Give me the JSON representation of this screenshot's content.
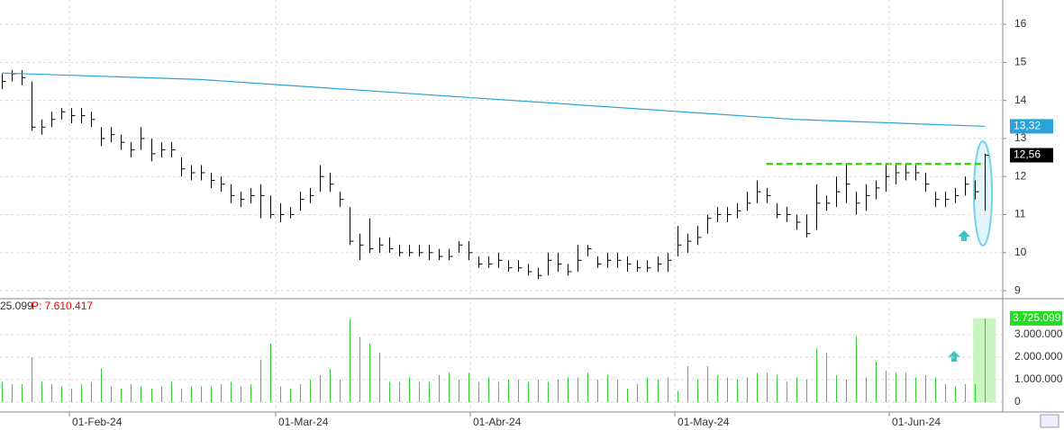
{
  "chart_data": [
    {
      "type": "ohlc",
      "color": "#000000",
      "xlim": [
        -0.2,
        100.8
      ],
      "ylim": [
        8.79,
        16.64
      ],
      "yticks": [
        9,
        10,
        11,
        12,
        13,
        14,
        15,
        16
      ],
      "grid": true,
      "high": [
        14.7,
        14.8,
        14.8,
        14.5,
        13.5,
        13.7,
        13.8,
        13.8,
        13.8,
        13.7,
        13.3,
        13.3,
        13.1,
        12.9,
        13.3,
        13.0,
        12.9,
        12.9,
        12.5,
        12.3,
        12.3,
        12.1,
        12.0,
        11.8,
        11.6,
        11.7,
        11.8,
        11.5,
        11.3,
        11.2,
        11.6,
        11.7,
        12.3,
        12.1,
        11.6,
        11.2,
        10.5,
        10.9,
        10.4,
        10.4,
        10.2,
        10.2,
        10.2,
        10.2,
        10.1,
        10.1,
        10.3,
        10.3,
        9.9,
        9.9,
        10.0,
        9.8,
        9.8,
        9.7,
        9.6,
        10.0,
        10.0,
        9.7,
        10.2,
        10.2,
        9.9,
        10.0,
        10.0,
        9.9,
        9.8,
        9.8,
        9.9,
        10.0,
        10.7,
        10.5,
        10.7,
        11.0,
        11.2,
        11.2,
        11.3,
        11.6,
        11.9,
        11.7,
        11.3,
        11.2,
        11.0,
        11.0,
        11.8,
        11.5,
        12.0,
        12.3,
        11.6,
        11.8,
        11.9,
        12.3,
        12.3,
        12.3,
        12.3,
        12.1,
        11.6,
        11.6,
        11.7,
        12.0,
        11.9,
        12.6
      ],
      "low": [
        14.3,
        14.5,
        14.4,
        13.2,
        13.1,
        13.3,
        13.5,
        13.4,
        13.4,
        13.3,
        12.8,
        12.9,
        12.7,
        12.5,
        12.7,
        12.4,
        12.5,
        12.5,
        12.0,
        11.9,
        11.9,
        11.7,
        11.6,
        11.3,
        11.2,
        11.3,
        10.9,
        10.9,
        10.8,
        10.9,
        11.1,
        11.3,
        11.6,
        11.6,
        11.2,
        10.2,
        9.8,
        10.0,
        10.0,
        10.0,
        9.9,
        9.9,
        9.9,
        9.8,
        9.8,
        9.8,
        10.0,
        9.8,
        9.6,
        9.6,
        9.6,
        9.5,
        9.5,
        9.4,
        9.3,
        9.4,
        9.5,
        9.4,
        9.5,
        9.9,
        9.6,
        9.6,
        9.6,
        9.5,
        9.5,
        9.5,
        9.5,
        9.5,
        9.9,
        10.0,
        10.2,
        10.5,
        10.8,
        10.8,
        10.9,
        11.1,
        11.3,
        11.3,
        10.9,
        10.8,
        10.6,
        10.4,
        10.6,
        11.1,
        11.2,
        11.3,
        11.0,
        11.1,
        11.4,
        11.6,
        11.8,
        11.9,
        11.9,
        11.6,
        11.2,
        11.2,
        11.3,
        11.5,
        11.4,
        11.1
      ],
      "close": [
        14.5,
        14.7,
        14.6,
        13.3,
        13.3,
        13.5,
        13.7,
        13.6,
        13.6,
        13.5,
        13.0,
        13.1,
        12.9,
        12.7,
        13.0,
        12.6,
        12.7,
        12.7,
        12.2,
        12.1,
        12.1,
        11.9,
        11.8,
        11.5,
        11.4,
        11.5,
        11.5,
        11.0,
        11.0,
        11.0,
        11.4,
        11.5,
        12.0,
        11.8,
        11.4,
        10.3,
        10.2,
        10.1,
        10.2,
        10.1,
        10.0,
        10.0,
        10.0,
        10.0,
        9.9,
        9.9,
        10.2,
        10.0,
        9.7,
        9.7,
        9.8,
        9.6,
        9.6,
        9.5,
        9.4,
        9.8,
        9.7,
        9.5,
        9.8,
        10.1,
        9.7,
        9.8,
        9.8,
        9.7,
        9.6,
        9.6,
        9.7,
        9.8,
        10.2,
        10.3,
        10.4,
        10.9,
        11.0,
        11.0,
        11.1,
        11.3,
        11.6,
        11.5,
        11.0,
        11.0,
        10.8,
        10.5,
        11.3,
        11.3,
        11.6,
        11.8,
        11.3,
        11.5,
        11.7,
        12.0,
        12.1,
        12.1,
        12.1,
        11.8,
        11.4,
        11.4,
        11.5,
        11.8,
        11.6,
        12.56
      ],
      "close_label": "12,56",
      "ma": {
        "x": [
          0,
          20,
          40,
          60,
          80,
          99
        ],
        "values": [
          14.72,
          14.55,
          14.2,
          13.85,
          13.5,
          13.32
        ],
        "color": "#29a3d9",
        "last_label": "13,32"
      },
      "resistance": {
        "value": 12.33,
        "x": [
          77,
          99
        ],
        "color": "#33dd00"
      }
    },
    {
      "type": "bar",
      "color": "#33cc33",
      "legend_text": "25.099",
      "legend_p": "P: 7.610.417",
      "xlim": [
        -0.2,
        100.8
      ],
      "ylim": [
        0,
        4480000
      ],
      "yticks": [
        0,
        {
          "value": 1000000,
          "label": "1.000.000"
        },
        {
          "value": 2000000,
          "label": "2.000.000"
        },
        {
          "value": 3000000,
          "label": "3.000.000"
        }
      ],
      "xticks": [
        {
          "value": 6.79,
          "label": "01-Feb-24"
        },
        {
          "value": 27.57,
          "label": "01-Mar-24"
        },
        {
          "value": 47.17,
          "label": "01-Abr-24"
        },
        {
          "value": 67.77,
          "label": "01-May-24"
        },
        {
          "value": 89.37,
          "label": "01-Jun-24"
        }
      ],
      "values": [
        900000,
        800000,
        800000,
        2000000,
        900000,
        800000,
        700000,
        600000,
        800000,
        900000,
        1500000,
        700000,
        600000,
        800000,
        700000,
        600000,
        700000,
        900000,
        600000,
        700000,
        700000,
        700000,
        800000,
        900000,
        700000,
        800000,
        1900000,
        2600000,
        700000,
        600000,
        800000,
        1000000,
        1200000,
        1500000,
        1000000,
        3700000,
        2900000,
        2600000,
        2200000,
        900000,
        900000,
        1100000,
        900000,
        900000,
        1200000,
        1300000,
        1000000,
        1300000,
        900000,
        1100000,
        900000,
        1000000,
        1000000,
        900000,
        1000000,
        900000,
        1000000,
        1100000,
        1100000,
        1300000,
        1000000,
        1200000,
        1000000,
        600000,
        800000,
        1100000,
        1000000,
        1100000,
        500000,
        1600000,
        1000000,
        1600000,
        1200000,
        1100000,
        1000000,
        1100000,
        1300000,
        1300000,
        1200000,
        900000,
        1100000,
        1000000,
        2400000,
        2200000,
        1200000,
        1000000,
        2900000,
        1100000,
        1800000,
        1400000,
        1300000,
        1300000,
        1100000,
        1200000,
        1100000,
        800000,
        700000,
        800000,
        800000,
        3725099
      ],
      "last_label": "3.725.099"
    }
  ]
}
